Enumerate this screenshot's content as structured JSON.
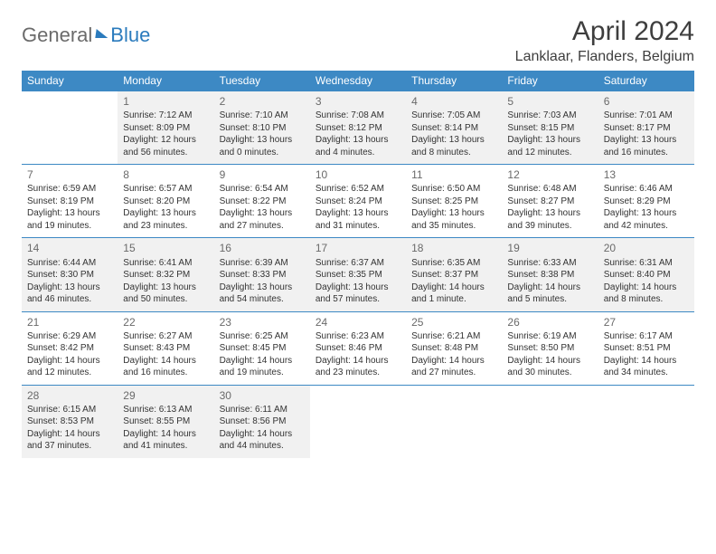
{
  "brand": {
    "word1": "General",
    "word2": "Blue"
  },
  "title": "April 2024",
  "location": "Lanklaar, Flanders, Belgium",
  "colors": {
    "header_bg": "#3d89c4",
    "header_text": "#ffffff",
    "shade_bg": "#f1f1f1",
    "rule": "#3d89c4",
    "text": "#333333"
  },
  "day_headers": [
    "Sunday",
    "Monday",
    "Tuesday",
    "Wednesday",
    "Thursday",
    "Friday",
    "Saturday"
  ],
  "weeks": [
    {
      "shaded": true,
      "days": [
        null,
        {
          "n": "1",
          "sunrise": "7:12 AM",
          "sunset": "8:09 PM",
          "daylight": "12 hours and 56 minutes."
        },
        {
          "n": "2",
          "sunrise": "7:10 AM",
          "sunset": "8:10 PM",
          "daylight": "13 hours and 0 minutes."
        },
        {
          "n": "3",
          "sunrise": "7:08 AM",
          "sunset": "8:12 PM",
          "daylight": "13 hours and 4 minutes."
        },
        {
          "n": "4",
          "sunrise": "7:05 AM",
          "sunset": "8:14 PM",
          "daylight": "13 hours and 8 minutes."
        },
        {
          "n": "5",
          "sunrise": "7:03 AM",
          "sunset": "8:15 PM",
          "daylight": "13 hours and 12 minutes."
        },
        {
          "n": "6",
          "sunrise": "7:01 AM",
          "sunset": "8:17 PM",
          "daylight": "13 hours and 16 minutes."
        }
      ]
    },
    {
      "shaded": false,
      "days": [
        {
          "n": "7",
          "sunrise": "6:59 AM",
          "sunset": "8:19 PM",
          "daylight": "13 hours and 19 minutes."
        },
        {
          "n": "8",
          "sunrise": "6:57 AM",
          "sunset": "8:20 PM",
          "daylight": "13 hours and 23 minutes."
        },
        {
          "n": "9",
          "sunrise": "6:54 AM",
          "sunset": "8:22 PM",
          "daylight": "13 hours and 27 minutes."
        },
        {
          "n": "10",
          "sunrise": "6:52 AM",
          "sunset": "8:24 PM",
          "daylight": "13 hours and 31 minutes."
        },
        {
          "n": "11",
          "sunrise": "6:50 AM",
          "sunset": "8:25 PM",
          "daylight": "13 hours and 35 minutes."
        },
        {
          "n": "12",
          "sunrise": "6:48 AM",
          "sunset": "8:27 PM",
          "daylight": "13 hours and 39 minutes."
        },
        {
          "n": "13",
          "sunrise": "6:46 AM",
          "sunset": "8:29 PM",
          "daylight": "13 hours and 42 minutes."
        }
      ]
    },
    {
      "shaded": true,
      "days": [
        {
          "n": "14",
          "sunrise": "6:44 AM",
          "sunset": "8:30 PM",
          "daylight": "13 hours and 46 minutes."
        },
        {
          "n": "15",
          "sunrise": "6:41 AM",
          "sunset": "8:32 PM",
          "daylight": "13 hours and 50 minutes."
        },
        {
          "n": "16",
          "sunrise": "6:39 AM",
          "sunset": "8:33 PM",
          "daylight": "13 hours and 54 minutes."
        },
        {
          "n": "17",
          "sunrise": "6:37 AM",
          "sunset": "8:35 PM",
          "daylight": "13 hours and 57 minutes."
        },
        {
          "n": "18",
          "sunrise": "6:35 AM",
          "sunset": "8:37 PM",
          "daylight": "14 hours and 1 minute."
        },
        {
          "n": "19",
          "sunrise": "6:33 AM",
          "sunset": "8:38 PM",
          "daylight": "14 hours and 5 minutes."
        },
        {
          "n": "20",
          "sunrise": "6:31 AM",
          "sunset": "8:40 PM",
          "daylight": "14 hours and 8 minutes."
        }
      ]
    },
    {
      "shaded": false,
      "days": [
        {
          "n": "21",
          "sunrise": "6:29 AM",
          "sunset": "8:42 PM",
          "daylight": "14 hours and 12 minutes."
        },
        {
          "n": "22",
          "sunrise": "6:27 AM",
          "sunset": "8:43 PM",
          "daylight": "14 hours and 16 minutes."
        },
        {
          "n": "23",
          "sunrise": "6:25 AM",
          "sunset": "8:45 PM",
          "daylight": "14 hours and 19 minutes."
        },
        {
          "n": "24",
          "sunrise": "6:23 AM",
          "sunset": "8:46 PM",
          "daylight": "14 hours and 23 minutes."
        },
        {
          "n": "25",
          "sunrise": "6:21 AM",
          "sunset": "8:48 PM",
          "daylight": "14 hours and 27 minutes."
        },
        {
          "n": "26",
          "sunrise": "6:19 AM",
          "sunset": "8:50 PM",
          "daylight": "14 hours and 30 minutes."
        },
        {
          "n": "27",
          "sunrise": "6:17 AM",
          "sunset": "8:51 PM",
          "daylight": "14 hours and 34 minutes."
        }
      ]
    },
    {
      "shaded": true,
      "days": [
        {
          "n": "28",
          "sunrise": "6:15 AM",
          "sunset": "8:53 PM",
          "daylight": "14 hours and 37 minutes."
        },
        {
          "n": "29",
          "sunrise": "6:13 AM",
          "sunset": "8:55 PM",
          "daylight": "14 hours and 41 minutes."
        },
        {
          "n": "30",
          "sunrise": "6:11 AM",
          "sunset": "8:56 PM",
          "daylight": "14 hours and 44 minutes."
        },
        null,
        null,
        null,
        null
      ]
    }
  ]
}
